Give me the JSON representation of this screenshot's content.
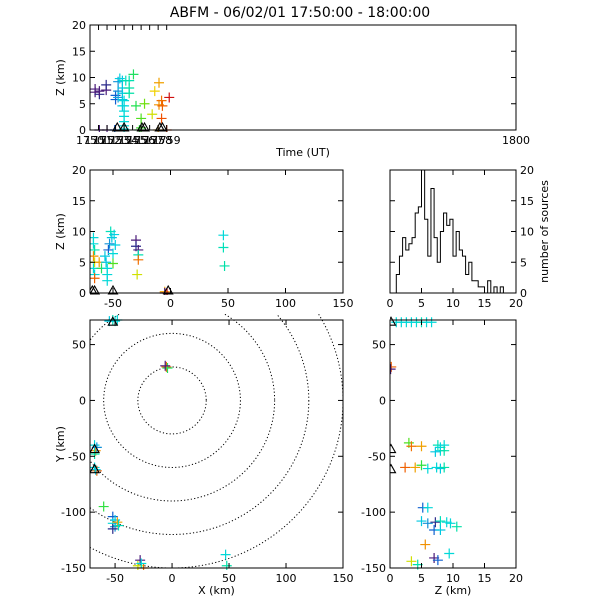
{
  "title": "ABFM - 06/02/01 17:50:00 - 18:00:00",
  "colors": {
    "background": "#ffffff",
    "axes": "#000000",
    "sensor_marker": "#000000"
  },
  "chart_data": [
    {
      "id": "time_height",
      "type": "scatter",
      "xlabel": "Time (UT)",
      "ylabel": "Z (km)",
      "xlim": [
        1750,
        1800
      ],
      "ylim": [
        0,
        20
      ],
      "xticks": [
        1750,
        1751,
        1752,
        1753,
        1754,
        1755,
        1756,
        1757,
        1758,
        1759,
        1800
      ],
      "yticks": [
        0,
        5,
        10,
        15,
        20
      ],
      "points": [
        {
          "x": 1750.6,
          "y": 7.2,
          "c": "#4a1a7a"
        },
        {
          "x": 1750.6,
          "y": 7.8,
          "c": "#4a1a7a"
        },
        {
          "x": 1751.1,
          "y": 6.8,
          "c": "#2a2a8a"
        },
        {
          "x": 1751.1,
          "y": 7.4,
          "c": "#4a1a7a"
        },
        {
          "x": 1751.1,
          "y": 0.0,
          "c": "#4a1a7a"
        },
        {
          "x": 1752.0,
          "y": 0.0,
          "c": "#4a1a7a"
        },
        {
          "x": 1751.9,
          "y": 7.6,
          "c": "#4a1a7a"
        },
        {
          "x": 1751.9,
          "y": 8.6,
          "c": "#2a2a8a"
        },
        {
          "x": 1753.0,
          "y": 5.8,
          "c": "#1060d0"
        },
        {
          "x": 1753.0,
          "y": 6.6,
          "c": "#1060d0"
        },
        {
          "x": 1752.9,
          "y": 0.0,
          "c": "#1060d0"
        },
        {
          "x": 1753.3,
          "y": 9.2,
          "c": "#1090d8"
        },
        {
          "x": 1753.3,
          "y": 7.4,
          "c": "#1090d8"
        },
        {
          "x": 1753.3,
          "y": 6.2,
          "c": "#10a0e0"
        },
        {
          "x": 1753.8,
          "y": 9.4,
          "c": "#00c8e0"
        },
        {
          "x": 1753.8,
          "y": 8.0,
          "c": "#00c8e0"
        },
        {
          "x": 1753.8,
          "y": 7.0,
          "c": "#00c8e0"
        },
        {
          "x": 1753.8,
          "y": 5.8,
          "c": "#00c8e0"
        },
        {
          "x": 1753.8,
          "y": 4.6,
          "c": "#00c8e0"
        },
        {
          "x": 1753.5,
          "y": 9.8,
          "c": "#00d0e0"
        },
        {
          "x": 1754.0,
          "y": 5.6,
          "c": "#00d8d8"
        },
        {
          "x": 1754.0,
          "y": 4.6,
          "c": "#00d8d8"
        },
        {
          "x": 1754.0,
          "y": 3.6,
          "c": "#00d8d8"
        },
        {
          "x": 1754.0,
          "y": 2.6,
          "c": "#00d8d8"
        },
        {
          "x": 1754.0,
          "y": 1.6,
          "c": "#00d8d8"
        },
        {
          "x": 1754.0,
          "y": 0.8,
          "c": "#00d8d8"
        },
        {
          "x": 1754.0,
          "y": 0.2,
          "c": "#00d8d8"
        },
        {
          "x": 1754.2,
          "y": 9.4,
          "c": "#00e0b8"
        },
        {
          "x": 1754.6,
          "y": 9.4,
          "c": "#00e0b0"
        },
        {
          "x": 1754.6,
          "y": 8.0,
          "c": "#00e0a8"
        },
        {
          "x": 1754.6,
          "y": 7.0,
          "c": "#00e0a8"
        },
        {
          "x": 1755.1,
          "y": 10.6,
          "c": "#20e060"
        },
        {
          "x": 1755.4,
          "y": 4.6,
          "c": "#20e050"
        },
        {
          "x": 1755.8,
          "y": 0.0,
          "c": "#30e040"
        },
        {
          "x": 1756.0,
          "y": 0.4,
          "c": "#40e030"
        },
        {
          "x": 1756.0,
          "y": 2.2,
          "c": "#50e020"
        },
        {
          "x": 1756.4,
          "y": 5.0,
          "c": "#70e010"
        },
        {
          "x": 1757.3,
          "y": 3.0,
          "c": "#d0e000"
        },
        {
          "x": 1757.6,
          "y": 7.4,
          "c": "#f0d000"
        },
        {
          "x": 1758.0,
          "y": 0.0,
          "c": "#f0a000"
        },
        {
          "x": 1758.1,
          "y": 9.0,
          "c": "#f0a000"
        },
        {
          "x": 1758.1,
          "y": 4.8,
          "c": "#f09000"
        },
        {
          "x": 1758.4,
          "y": 5.6,
          "c": "#f07000"
        },
        {
          "x": 1758.5,
          "y": 4.6,
          "c": "#f06000"
        },
        {
          "x": 1758.4,
          "y": 2.2,
          "c": "#f05000"
        },
        {
          "x": 1759.0,
          "y": 0.0,
          "c": "#e03000"
        },
        {
          "x": 1759.3,
          "y": 6.2,
          "c": "#d01010"
        }
      ],
      "sensors": [
        1753.2,
        1754.0,
        1756.1,
        1756.4,
        1758.2,
        1758.5
      ]
    },
    {
      "id": "x_height",
      "type": "scatter",
      "xlabel": "",
      "ylabel": "Z (km)",
      "xlim": [
        -70,
        150
      ],
      "ylim": [
        0,
        20
      ],
      "xticks": [
        -50,
        0,
        50,
        100,
        150
      ],
      "yticks": [
        0,
        5,
        10,
        15,
        20
      ],
      "points": [
        {
          "x": -67,
          "y": 9.0,
          "c": "#00d8d8"
        },
        {
          "x": -67,
          "y": 8.0,
          "c": "#00d8d8"
        },
        {
          "x": -66,
          "y": 7.0,
          "c": "#00e0a8"
        },
        {
          "x": -67,
          "y": 6.0,
          "c": "#f09000"
        },
        {
          "x": -66,
          "y": 5.0,
          "c": "#d0e000"
        },
        {
          "x": -67,
          "y": 4.0,
          "c": "#00d8d8"
        },
        {
          "x": -66,
          "y": 3.0,
          "c": "#00d8d8"
        },
        {
          "x": -66,
          "y": 2.4,
          "c": "#f06000"
        },
        {
          "x": -62,
          "y": 5.0,
          "c": "#f0a000"
        },
        {
          "x": -60,
          "y": 4.0,
          "c": "#20e060"
        },
        {
          "x": -57,
          "y": 6.0,
          "c": "#00c8e0"
        },
        {
          "x": -56,
          "y": 5.0,
          "c": "#00c8e0"
        },
        {
          "x": -55,
          "y": 4.0,
          "c": "#00d8d8"
        },
        {
          "x": -55,
          "y": 3.0,
          "c": "#00d8d8"
        },
        {
          "x": -55,
          "y": 2.0,
          "c": "#00d8d8"
        },
        {
          "x": -54,
          "y": 7.0,
          "c": "#1060d0"
        },
        {
          "x": -53,
          "y": 8.0,
          "c": "#1090d8"
        },
        {
          "x": -52,
          "y": 10.0,
          "c": "#00e0b8"
        },
        {
          "x": -51,
          "y": 9.0,
          "c": "#00c8e0"
        },
        {
          "x": -50,
          "y": 6.4,
          "c": "#00d8d8"
        },
        {
          "x": -50,
          "y": 4.8,
          "c": "#50e020"
        },
        {
          "x": -49,
          "y": 9.5,
          "c": "#00d0e0"
        },
        {
          "x": -48,
          "y": 7.8,
          "c": "#00d0e0"
        },
        {
          "x": -30,
          "y": 8.6,
          "c": "#4a1a7a"
        },
        {
          "x": -30,
          "y": 7.6,
          "c": "#2a2a8a"
        },
        {
          "x": -28,
          "y": 7.0,
          "c": "#4a1a7a"
        },
        {
          "x": -28,
          "y": 6.2,
          "c": "#00e0b0"
        },
        {
          "x": -28,
          "y": 5.4,
          "c": "#f07000"
        },
        {
          "x": -29,
          "y": 3.0,
          "c": "#d0e000"
        },
        {
          "x": -5,
          "y": 0.2,
          "c": "#f0a000"
        },
        {
          "x": -5,
          "y": 0.0,
          "c": "#4a1a7a"
        },
        {
          "x": -3,
          "y": 0.0,
          "c": "#d01010"
        },
        {
          "x": 46,
          "y": 9.4,
          "c": "#00d8d8"
        },
        {
          "x": 46,
          "y": 7.4,
          "c": "#00e0b8"
        },
        {
          "x": 47,
          "y": 4.4,
          "c": "#00e0a8"
        }
      ],
      "sensors": [
        -68,
        -66,
        -50,
        -2
      ]
    },
    {
      "id": "histogram",
      "type": "bar",
      "xlabel": "",
      "ylabel": "number of sources",
      "xlim": [
        0,
        20
      ],
      "ylim": [
        0,
        20
      ],
      "xticks": [
        0,
        5,
        10,
        15,
        20
      ],
      "yticks": [
        0,
        5,
        10,
        15,
        20
      ],
      "bin_width": 0.5,
      "bin_start": 0,
      "values": [
        0,
        0,
        3,
        6,
        9,
        7,
        8,
        9,
        13,
        14,
        20,
        12,
        6,
        17,
        9,
        5,
        10,
        13,
        11,
        12,
        6,
        10,
        7,
        6,
        3,
        5,
        2,
        2,
        1,
        1,
        0,
        2,
        0,
        1,
        0,
        1,
        0,
        0,
        0,
        0
      ]
    },
    {
      "id": "plan_view",
      "type": "scatter",
      "xlabel": "X (km)",
      "ylabel": "Y (km)",
      "xlim": [
        -72,
        150
      ],
      "ylim": [
        -150,
        72
      ],
      "xticks": [
        -50,
        0,
        50,
        100,
        150
      ],
      "yticks": [
        -150,
        -100,
        -50,
        0,
        50
      ],
      "range_rings_km": [
        30,
        60,
        90,
        120,
        150
      ],
      "points": [
        {
          "x": -50,
          "y": 71,
          "c": "#00d8d8"
        },
        {
          "x": -52,
          "y": 72,
          "c": "#00e0b8"
        },
        {
          "x": -48,
          "y": 72,
          "c": "#00d8d8"
        },
        {
          "x": -55,
          "y": 71,
          "c": "#00c8e0"
        },
        {
          "x": -5,
          "y": 30,
          "c": "#f06000"
        },
        {
          "x": -4,
          "y": 29,
          "c": "#20e060"
        },
        {
          "x": -6,
          "y": 31,
          "c": "#4a1a7a"
        },
        {
          "x": -68,
          "y": -40,
          "c": "#00d8d8"
        },
        {
          "x": -67,
          "y": -45,
          "c": "#f09000"
        },
        {
          "x": -68,
          "y": -48,
          "c": "#00e0a8"
        },
        {
          "x": -66,
          "y": -42,
          "c": "#1090d8"
        },
        {
          "x": -68,
          "y": -60,
          "c": "#00d8d8"
        },
        {
          "x": -66,
          "y": -63,
          "c": "#f06000"
        },
        {
          "x": -67,
          "y": -62,
          "c": "#00c8e0"
        },
        {
          "x": -60,
          "y": -95,
          "c": "#30e040"
        },
        {
          "x": -52,
          "y": -104,
          "c": "#1060d0"
        },
        {
          "x": -50,
          "y": -107,
          "c": "#00c8e0"
        },
        {
          "x": -52,
          "y": -110,
          "c": "#00d8d8"
        },
        {
          "x": -50,
          "y": -113,
          "c": "#1090d8"
        },
        {
          "x": -48,
          "y": -109,
          "c": "#f0a000"
        },
        {
          "x": -52,
          "y": -115,
          "c": "#2a2a8a"
        },
        {
          "x": -47,
          "y": -112,
          "c": "#00e0b8"
        },
        {
          "x": -28,
          "y": -143,
          "c": "#4a1a7a"
        },
        {
          "x": -30,
          "y": -148,
          "c": "#d0e000"
        },
        {
          "x": -25,
          "y": -150,
          "c": "#f07000"
        },
        {
          "x": -27,
          "y": -146,
          "c": "#00d8d8"
        },
        {
          "x": 47,
          "y": -138,
          "c": "#00d8d8"
        },
        {
          "x": 48,
          "y": -148,
          "c": "#00e0a8"
        }
      ],
      "sensors": [
        {
          "x": -52,
          "y": 70
        },
        {
          "x": -68,
          "y": -44
        },
        {
          "x": -68,
          "y": -62
        }
      ]
    },
    {
      "id": "height_y",
      "type": "scatter",
      "xlabel": "Z (km)",
      "ylabel": "",
      "xlim": [
        0,
        20
      ],
      "ylim": [
        -150,
        72
      ],
      "xticks": [
        0,
        5,
        10,
        15,
        20
      ],
      "yticks": [
        -150,
        -100,
        -50,
        0,
        50
      ],
      "points": [
        {
          "x": 1.0,
          "y": 70,
          "c": "#00d8d8"
        },
        {
          "x": 1.8,
          "y": 70,
          "c": "#00d8d8"
        },
        {
          "x": 2.6,
          "y": 70,
          "c": "#00d8d8"
        },
        {
          "x": 3.4,
          "y": 70,
          "c": "#00d8d8"
        },
        {
          "x": 4.2,
          "y": 70,
          "c": "#00d8d8"
        },
        {
          "x": 5.0,
          "y": 70,
          "c": "#00e0b8"
        },
        {
          "x": 5.8,
          "y": 70,
          "c": "#00d8d8"
        },
        {
          "x": 6.6,
          "y": 70,
          "c": "#00d8d8"
        },
        {
          "x": 0.2,
          "y": 30,
          "c": "#f06000"
        },
        {
          "x": 0.1,
          "y": 28,
          "c": "#4a1a7a"
        },
        {
          "x": 3.0,
          "y": -38,
          "c": "#50e020"
        },
        {
          "x": 3.4,
          "y": -41,
          "c": "#f07000"
        },
        {
          "x": 5.0,
          "y": -41,
          "c": "#f0a000"
        },
        {
          "x": 7.6,
          "y": -40,
          "c": "#00e0b8"
        },
        {
          "x": 8.0,
          "y": -42,
          "c": "#00d8d8"
        },
        {
          "x": 8.6,
          "y": -40,
          "c": "#00d8d8"
        },
        {
          "x": 8.0,
          "y": -45,
          "c": "#00d8d8"
        },
        {
          "x": 8.6,
          "y": -45,
          "c": "#00e0a8"
        },
        {
          "x": 7.2,
          "y": -46,
          "c": "#00c8e0"
        },
        {
          "x": 2.4,
          "y": -60,
          "c": "#f06000"
        },
        {
          "x": 4.0,
          "y": -60,
          "c": "#f0a000"
        },
        {
          "x": 5.0,
          "y": -58,
          "c": "#30e040"
        },
        {
          "x": 6.0,
          "y": -61,
          "c": "#00d8d8"
        },
        {
          "x": 7.4,
          "y": -60,
          "c": "#00d8d8"
        },
        {
          "x": 8.0,
          "y": -61,
          "c": "#00c8e0"
        },
        {
          "x": 8.6,
          "y": -60,
          "c": "#00e0a8"
        },
        {
          "x": 5.2,
          "y": -96,
          "c": "#1060d0"
        },
        {
          "x": 6.0,
          "y": -96,
          "c": "#00d8d8"
        },
        {
          "x": 5.0,
          "y": -108,
          "c": "#00c8e0"
        },
        {
          "x": 6.0,
          "y": -110,
          "c": "#1090d8"
        },
        {
          "x": 7.2,
          "y": -109,
          "c": "#2a2a8a"
        },
        {
          "x": 8.0,
          "y": -108,
          "c": "#00e0b8"
        },
        {
          "x": 9.0,
          "y": -109,
          "c": "#00d8d8"
        },
        {
          "x": 9.6,
          "y": -110,
          "c": "#00d8d8"
        },
        {
          "x": 10.6,
          "y": -113,
          "c": "#00e0a8"
        },
        {
          "x": 7.0,
          "y": -116,
          "c": "#1060d0"
        },
        {
          "x": 8.0,
          "y": -116,
          "c": "#00c8e0"
        },
        {
          "x": 5.6,
          "y": -129,
          "c": "#f09000"
        },
        {
          "x": 9.4,
          "y": -137,
          "c": "#00d8d8"
        },
        {
          "x": 7.0,
          "y": -141,
          "c": "#4a1a7a"
        },
        {
          "x": 3.4,
          "y": -144,
          "c": "#d0e000"
        },
        {
          "x": 4.4,
          "y": -147,
          "c": "#00e0a8"
        },
        {
          "x": 7.6,
          "y": -143,
          "c": "#1060d0"
        }
      ],
      "sensors": [
        {
          "x": 0.0,
          "y": 70
        },
        {
          "x": 0.0,
          "y": -44
        },
        {
          "x": 0.0,
          "y": -62
        }
      ]
    }
  ]
}
